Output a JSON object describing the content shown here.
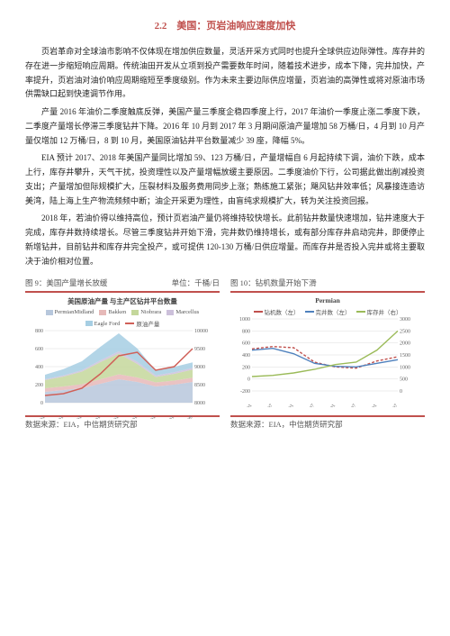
{
  "section_title": "2.2　美国：页岩油响应速度加快",
  "paragraphs": [
    "页岩革命对全球油市影响不仅体现在增加供应数量，灵活开采方式同时也提升全球供应边际弹性。库存井的存在进一步缩短响应周期。传统油田开发从立项到投产需要数年时间，随着技术进步，成本下降，完井加快，产率提升，页岩油对油价响应周期缩短至季度级别。作为未来主要边际供应增量，页岩油的高弹性或将对原油市场供需缺口起到快速调节作用。",
    "产量 2016 年油价二季度触底反弹，美国产量三季度企稳四季度上行，2017 年油价一季度止涨二季度下跌，二季度产量增长停滞三季度钻井下降。2016 年 10 月到 2017 年 3 月期间原油产量增加 58 万桶/日，4 月到 10 月产量仅增加 12 万桶/日，8 到 10 月，美国原油钻井平台数量减少 39 座，降幅 5%。",
    "EIA 预计 2017、2018 年美国产量同比增加 59、123 万桶/日，产量增幅自 6 月起持续下调，油价下跌，成本上行，库存井攀升，天气干扰，投资理性以及产量增幅放缓主要原因。二季度油价下行，公司据此做出削减投资支出；产量增加但际规模扩大，压裂材料及服务费用同步上涨；熟练施工紧张；飓风钻井效率低；风暴接连造访美湾，陆上海上生产物流频频中断；油企开采更为理性，由盲纯求规模扩大，转为关注投资回报。",
    "2018 年，若油价得以维持高位，预计页岩油产量仍将维持较快增长。此前钻井数量快速增加，钻井速度大于完成，库存井数持续增长。尽管三季度钻井开始下滑，完井数仍维持增长，或有部分库存井启动完井，即便停止新增钻井，目前钻井和库存井完全投产，或可提供 120-130 万桶/日供应增量。而库存井是否投入完井或将主要取决于油价相对位置。"
  ],
  "chart_left": {
    "caption_left": "图 9：美国产量增长放缓",
    "caption_right": "单位：千桶/日",
    "title": "美国原油产量 与主产区钻井平台数量",
    "source": "数据来源：EIA，中信期货研究部",
    "series": [
      {
        "name": "PermianMidland",
        "color": "#b7c7dc"
      },
      {
        "name": "Bakken",
        "color": "#e6b9b8"
      },
      {
        "name": "Niobrara",
        "color": "#c4d79b"
      },
      {
        "name": "Marcellus",
        "color": "#ccc0da"
      },
      {
        "name": "Eagle Ford",
        "color": "#a6cee3"
      },
      {
        "name": "原油产量",
        "color": "#d06058"
      }
    ],
    "y_left": {
      "min": 0,
      "max": 800,
      "step": 200
    },
    "y_right": {
      "min": 8000,
      "max": 10000,
      "step": 500
    },
    "x_labels": [
      "2010/01",
      "2011/01",
      "2012/01",
      "2013/01",
      "2014/01",
      "2015/01",
      "2016/01",
      "2017/01",
      "2017/09"
    ],
    "area_stack": [
      [
        120,
        140,
        160,
        210,
        260,
        230,
        180,
        200,
        230
      ],
      [
        40,
        40,
        45,
        50,
        55,
        50,
        45,
        45,
        48
      ],
      [
        90,
        110,
        140,
        190,
        230,
        150,
        60,
        75,
        90
      ],
      [
        10,
        12,
        15,
        20,
        25,
        22,
        18,
        18,
        18
      ],
      [
        50,
        70,
        100,
        150,
        200,
        150,
        55,
        60,
        62
      ]
    ],
    "line_prod": [
      8200,
      8250,
      8400,
      8800,
      9300,
      9400,
      8900,
      9000,
      9500
    ]
  },
  "chart_right": {
    "caption_left": "图 10：钻机数量开始下滑",
    "title": "Permian",
    "source": "数据来源：EIA，中信期货研究部",
    "series": [
      {
        "name": "钻机数（左）",
        "color": "#c0504d",
        "style": "dash"
      },
      {
        "name": "完井数（左）",
        "color": "#4f81bd",
        "style": "solid"
      },
      {
        "name": "库存井（右）",
        "color": "#9bbb59",
        "style": "solid"
      }
    ],
    "y_left": {
      "min": -200,
      "max": 1000,
      "step": 200
    },
    "y_right": {
      "min": 0,
      "max": 3000,
      "step": 500
    },
    "x_labels": [
      "2014/01",
      "2014/07",
      "2015/01",
      "2015/07",
      "2016/01",
      "2016/07",
      "2017/01",
      "2017/07"
    ],
    "line_rigs": [
      500,
      540,
      520,
      280,
      200,
      180,
      300,
      370
    ],
    "line_comp": [
      480,
      510,
      420,
      260,
      210,
      200,
      260,
      320
    ],
    "line_duc": [
      600,
      650,
      750,
      900,
      1100,
      1200,
      1700,
      2500
    ]
  }
}
